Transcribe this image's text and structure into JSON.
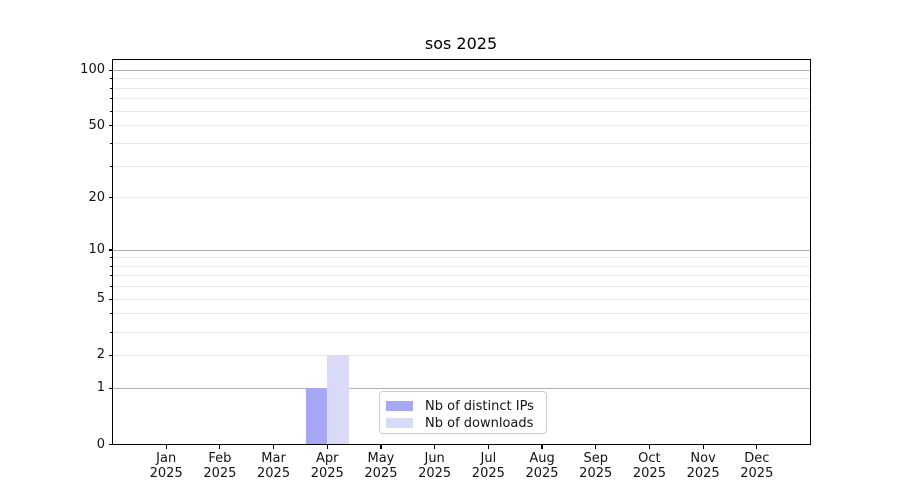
{
  "chart_data": {
    "type": "bar",
    "title": "sos 2025",
    "x_axis": {
      "categories": [
        "Jan",
        "Feb",
        "Mar",
        "Apr",
        "May",
        "Jun",
        "Jul",
        "Aug",
        "Sep",
        "Oct",
        "Nov",
        "Dec"
      ],
      "year": "2025"
    },
    "series": [
      {
        "name": "Nb of distinct IPs",
        "color": "#a7a7f5",
        "values": [
          0,
          0,
          0,
          1,
          0,
          0,
          0,
          0,
          0,
          0,
          0,
          0
        ]
      },
      {
        "name": "Nb of downloads",
        "color": "#d9d9f8",
        "values": [
          0,
          0,
          0,
          2,
          0,
          0,
          0,
          0,
          0,
          0,
          0,
          0
        ]
      }
    ],
    "y_axis": {
      "scale": "symlog",
      "range": [
        0,
        115
      ],
      "tick_labels": [
        0,
        1,
        2,
        5,
        10,
        20,
        50,
        100
      ],
      "major_grid": [
        1,
        10,
        100
      ],
      "minor_grid": [
        2,
        3,
        4,
        5,
        6,
        7,
        8,
        9,
        20,
        30,
        40,
        50,
        60,
        70,
        80,
        90
      ]
    },
    "grid": true,
    "legend_position": "lower center"
  },
  "colors": {
    "major_grid": "#b0b0b0",
    "minor_grid": "#e9e9e9",
    "spine": "#000000",
    "background": "#ffffff",
    "text": "#141414",
    "legend_border": "#cccccc"
  }
}
